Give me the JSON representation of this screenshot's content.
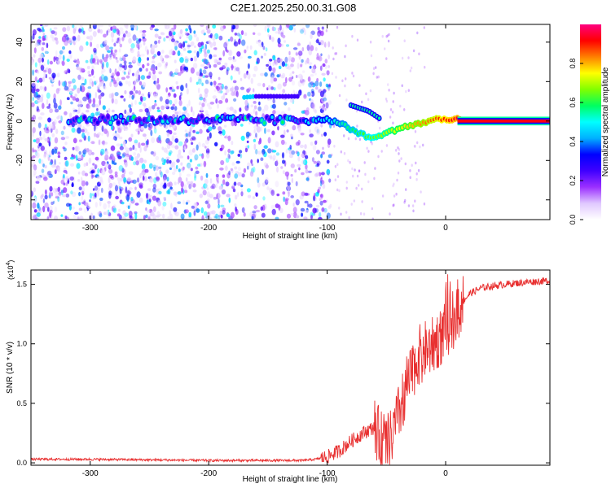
{
  "title": "C2E1.2025.250.00.31.G08",
  "chart_data": [
    {
      "type": "heatmap",
      "name": "spectrogram",
      "xlabel": "Height of straight line (km)",
      "ylabel": "Frequency (Hz)",
      "xlim": [
        -350,
        88
      ],
      "ylim": [
        -50,
        49
      ],
      "xticks": [
        "-300",
        "-200",
        "-100",
        "0"
      ],
      "yticks": [
        "40",
        "20",
        "0",
        "-20",
        "-40"
      ],
      "xtick_values": [
        -300,
        -200,
        -100,
        0
      ],
      "ytick_values": [
        40,
        20,
        0,
        -20,
        -40
      ],
      "noise_cutoff_x": -107,
      "main_trace": {
        "x": [
          -315,
          -250,
          -200,
          -150,
          -120,
          -100,
          -90,
          -80,
          -70,
          -60,
          -55,
          -45,
          -35,
          -25,
          -15,
          -5,
          5,
          88
        ],
        "y": [
          1,
          0.5,
          0.8,
          0.3,
          0.5,
          1,
          -1,
          -4,
          -7,
          -9,
          -7,
          -5,
          -3,
          -2,
          0,
          1,
          1,
          0.5
        ]
      },
      "side_trace": {
        "x": [
          -80,
          -75,
          -70,
          -65,
          -60,
          -55
        ],
        "y": [
          8,
          7,
          6,
          5,
          3,
          1
        ]
      },
      "upper_trace": {
        "x": [
          -170,
          -160,
          -150,
          -140,
          -130,
          -125
        ],
        "y": [
          12,
          12.5,
          12.5,
          12.5,
          12.5,
          12.5
        ]
      },
      "colorbar": {
        "label": "Normalized spectral amplitude",
        "ticks": [
          "0.0",
          "0.2",
          "0.4",
          "0.6",
          "0.8"
        ],
        "tick_values": [
          0.0,
          0.2,
          0.4,
          0.6,
          0.8
        ],
        "range": [
          0,
          1
        ],
        "colors": [
          "#ffffff",
          "#e0c8ff",
          "#9b30ff",
          "#3f00ff",
          "#0000ff",
          "#00b0ff",
          "#00ffff",
          "#00ff60",
          "#80ff00",
          "#ffff00",
          "#ff8000",
          "#ff0000",
          "#ff0080"
        ]
      }
    },
    {
      "type": "line",
      "name": "snr",
      "xlabel": "Height of straight line (km)",
      "ylabel": "SNR (10 * v/v)",
      "scale_label": "(x10",
      "scale_exponent": "4",
      "xlim": [
        -350,
        88
      ],
      "ylim": [
        -0.02,
        1.62
      ],
      "xticks": [
        "-300",
        "-200",
        "-100",
        "0"
      ],
      "xtick_values": [
        -300,
        -200,
        -100,
        0
      ],
      "yticks": [
        "0.0",
        "0.5",
        "1.0",
        "1.5"
      ],
      "ytick_values": [
        0.0,
        0.5,
        1.0,
        1.5
      ],
      "color": "#e83030",
      "envelope": {
        "x": [
          -350,
          -300,
          -250,
          -200,
          -150,
          -120,
          -110,
          -100,
          -90,
          -80,
          -70,
          -60,
          -55,
          -50,
          -45,
          -40,
          -35,
          -30,
          -25,
          -20,
          -15,
          -10,
          -5,
          0,
          10,
          20,
          30,
          50,
          70,
          88
        ],
        "y": [
          0.03,
          0.03,
          0.025,
          0.02,
          0.02,
          0.02,
          0.03,
          0.05,
          0.1,
          0.18,
          0.25,
          0.3,
          0.2,
          0.15,
          0.22,
          0.4,
          0.55,
          0.7,
          0.85,
          0.95,
          0.95,
          1.0,
          1.05,
          1.1,
          1.3,
          1.42,
          1.47,
          1.5,
          1.52,
          1.53
        ]
      }
    }
  ]
}
